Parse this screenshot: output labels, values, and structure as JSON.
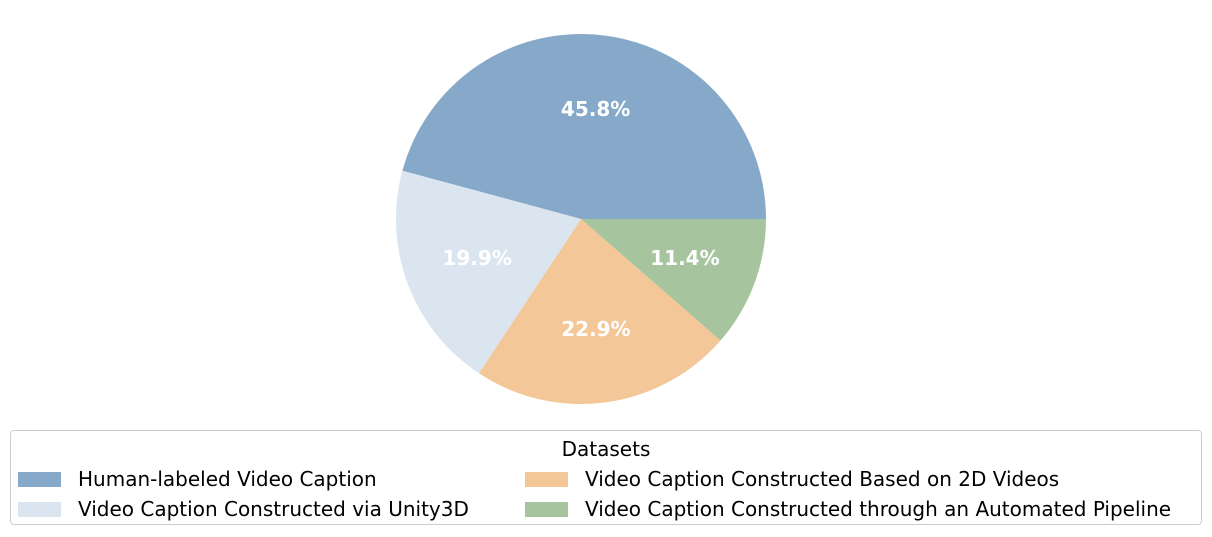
{
  "chart_data": {
    "type": "pie",
    "title": "",
    "categories": [
      "Human-labeled Video Caption",
      "Video Caption Constructed via Unity3D",
      "Video Caption Constructed Based on 2D Videos",
      "Video Caption Constructed through an Automated Pipeline"
    ],
    "values": [
      45.8,
      19.9,
      22.9,
      11.4
    ],
    "labels": [
      "45.8%",
      "19.9%",
      "22.9%",
      "11.4%"
    ],
    "colors": [
      "#86a9c9",
      "#dae5f0",
      "#f3c797",
      "#a6c49e"
    ],
    "start_angle_deg": 0,
    "direction": "counterclockwise",
    "legend": {
      "title": "Datasets",
      "placement": "bottom",
      "columns": 2
    }
  }
}
